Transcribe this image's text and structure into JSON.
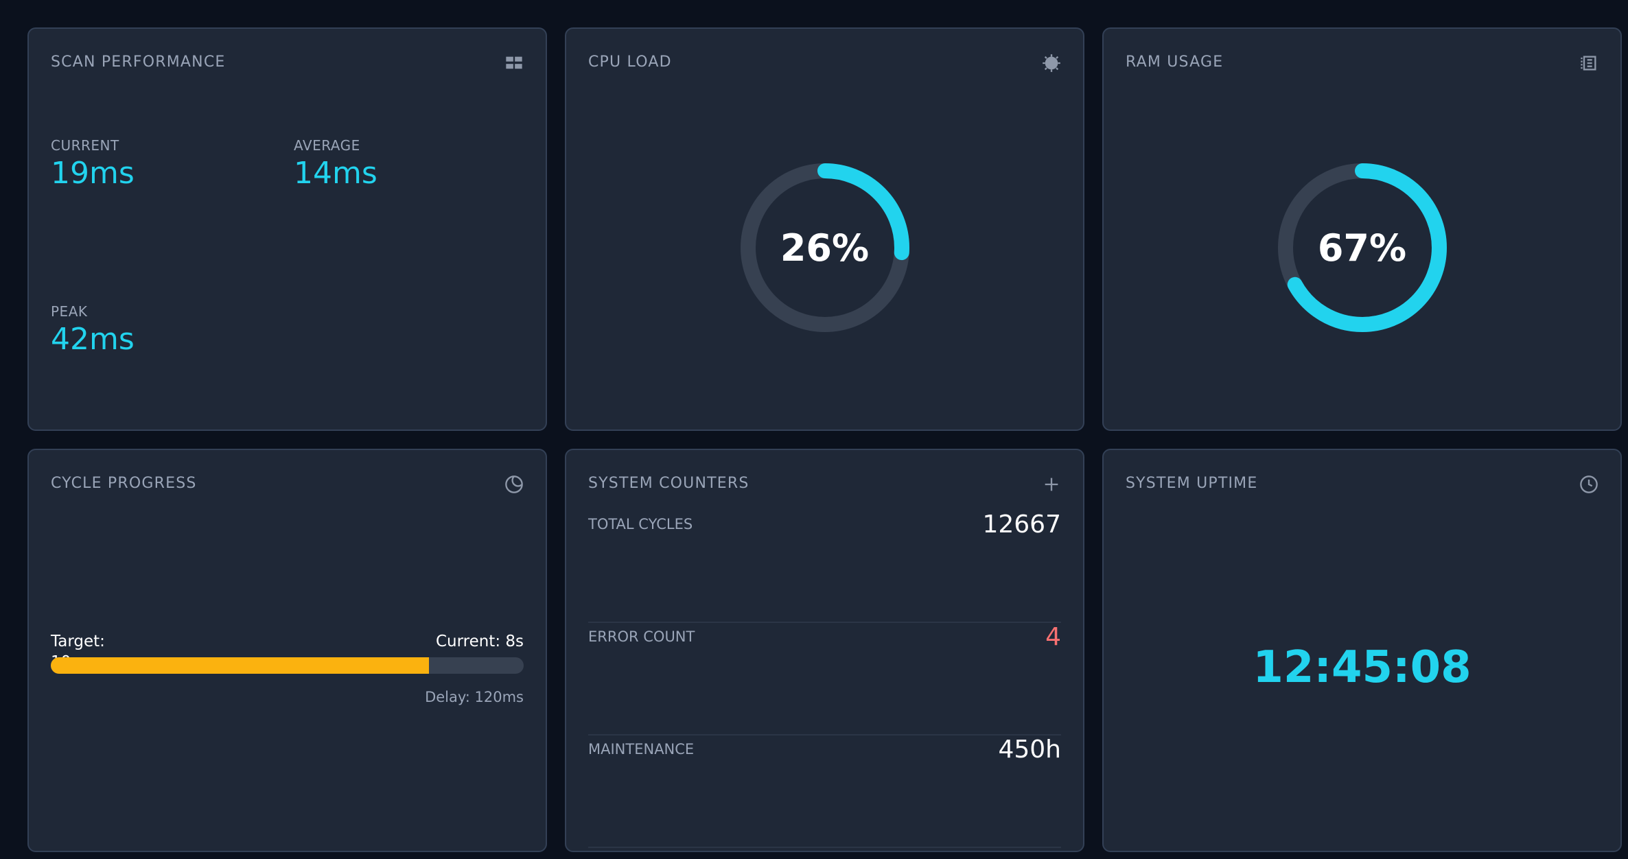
{
  "scan_performance": {
    "title": "SCAN PERFORMANCE",
    "icon": "grid-icon",
    "current_label": "CURRENT",
    "current_value": "19ms",
    "average_label": "AVERAGE",
    "average_value": "14ms",
    "peak_label": "PEAK",
    "peak_value": "42ms"
  },
  "cpu_load": {
    "title": "CPU LOAD",
    "icon": "chip-icon",
    "value_text": "26%",
    "value": 26
  },
  "ram_usage": {
    "title": "RAM USAGE",
    "icon": "memory-icon",
    "value_text": "67%",
    "value": 67
  },
  "cycle_progress": {
    "title": "CYCLE PROGRESS",
    "icon": "moon-icon",
    "target_label": "Target:",
    "target_value": "10s",
    "current_text": "Current: 8s",
    "progress_fraction": 0.8,
    "delay_text": "Delay: 120ms"
  },
  "system_counters": {
    "title": "SYSTEM COUNTERS",
    "icon": "plus-icon",
    "rows": [
      {
        "label": "TOTAL CYCLES",
        "value": "12667"
      },
      {
        "label": "ERROR COUNT",
        "value": "4"
      },
      {
        "label": "MAINTENANCE",
        "value": "450h"
      }
    ]
  },
  "system_uptime": {
    "title": "SYSTEM UPTIME",
    "icon": "clock-icon",
    "value": "12:45:08"
  },
  "colors": {
    "background": "#0b111d",
    "card": "#1f2837",
    "accent": "#22d3ee",
    "progress": "#fbb20f",
    "error": "#f87171",
    "track": "#374151"
  }
}
